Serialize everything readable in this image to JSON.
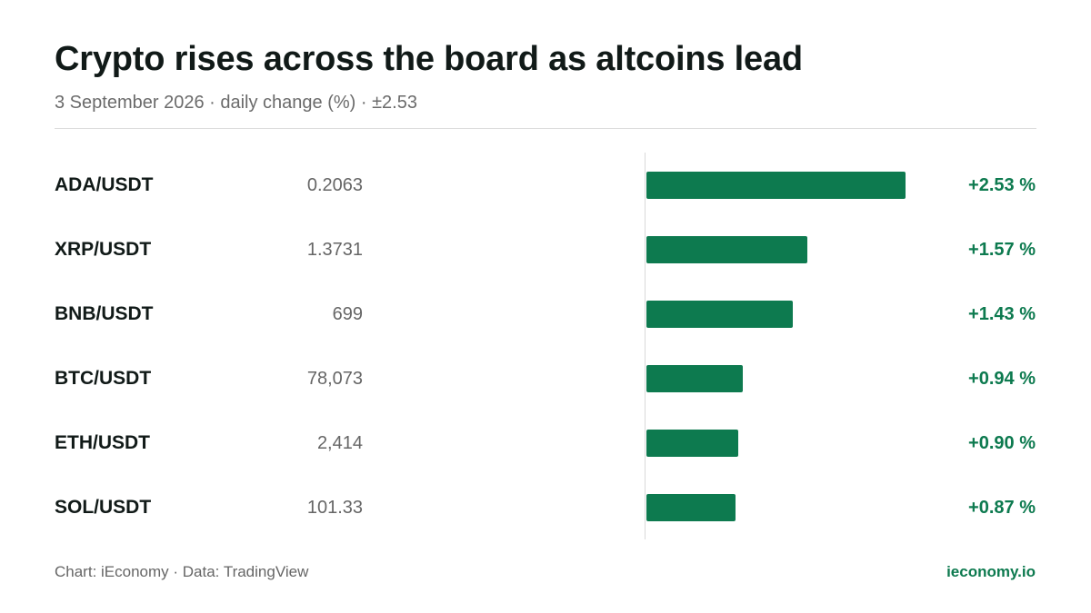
{
  "header": {
    "title": "Crypto rises across the board as altcoins lead",
    "subtitle": "3 September 2026 · daily change (%) · ±2.53"
  },
  "footer": {
    "credit": "Chart: iEconomy · Data: TradingView",
    "site": "ieconomy.io"
  },
  "colors": {
    "positive": "#0d7a4f",
    "axis": "#d9d9d9"
  },
  "chart_data": {
    "type": "bar",
    "orientation": "horizontal",
    "title": "Crypto rises across the board as altcoins lead",
    "subtitle": "3 September 2026 · daily change (%) · ±2.53",
    "xlim": [
      0,
      2.53
    ],
    "categories": [
      "ADA/USDT",
      "XRP/USDT",
      "BNB/USDT",
      "BTC/USDT",
      "ETH/USDT",
      "SOL/USDT"
    ],
    "prices": [
      "0.2063",
      "1.3731",
      "699",
      "78,073",
      "2,414",
      "101.33"
    ],
    "values": [
      2.53,
      1.57,
      1.43,
      0.94,
      0.9,
      0.87
    ],
    "value_labels": [
      "+2.53 %",
      "+1.57 %",
      "+1.43 %",
      "+0.94 %",
      "+0.90 %",
      "+0.87 %"
    ]
  }
}
